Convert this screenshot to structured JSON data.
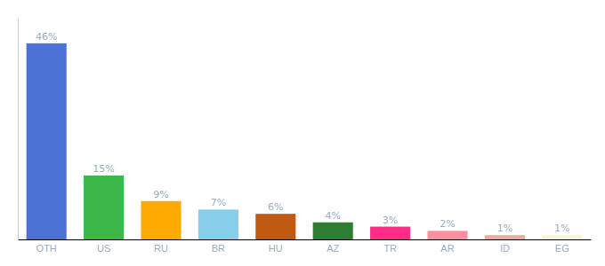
{
  "chart_data": {
    "type": "bar",
    "categories": [
      "OTH",
      "US",
      "RU",
      "BR",
      "HU",
      "AZ",
      "TR",
      "AR",
      "ID",
      "EG"
    ],
    "values": [
      46,
      15,
      9,
      7,
      6,
      4,
      3,
      2,
      1,
      1
    ],
    "value_labels": [
      "46%",
      "15%",
      "9%",
      "7%",
      "6%",
      "4%",
      "3%",
      "2%",
      "1%",
      "1%"
    ],
    "colors": [
      "#4c72d5",
      "#3cb84a",
      "#ffaa00",
      "#87ceeb",
      "#c05a10",
      "#2e7d32",
      "#ff2d87",
      "#ff8fa0",
      "#f0a898",
      "#f5f5d0"
    ],
    "ylim": [
      0,
      52
    ],
    "yticks": [],
    "grid": false,
    "data_labels": true,
    "tick_labels": "x"
  }
}
